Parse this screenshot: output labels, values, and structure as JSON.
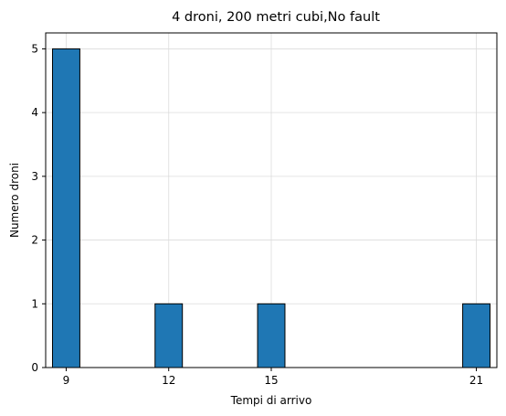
{
  "chart_data": {
    "type": "bar",
    "title": "4 droni, 200 metri cubi,No fault",
    "xlabel": "Tempi di arrivo",
    "ylabel": "Numero droni",
    "x_ticks": [
      "9",
      "12",
      "15",
      "21"
    ],
    "y_ticks": [
      "0",
      "1",
      "2",
      "3",
      "4",
      "5"
    ],
    "bars": [
      {
        "x": 9,
        "value": 5
      },
      {
        "x": 12,
        "value": 1
      },
      {
        "x": 15,
        "value": 1
      },
      {
        "x": 21,
        "value": 1
      }
    ],
    "bar_width": 0.8,
    "xlim": [
      8.4,
      21.6
    ],
    "ylim": [
      0,
      5.25
    ],
    "grid": true,
    "bar_color": "#1f77b4",
    "edge_color": "#000000"
  }
}
